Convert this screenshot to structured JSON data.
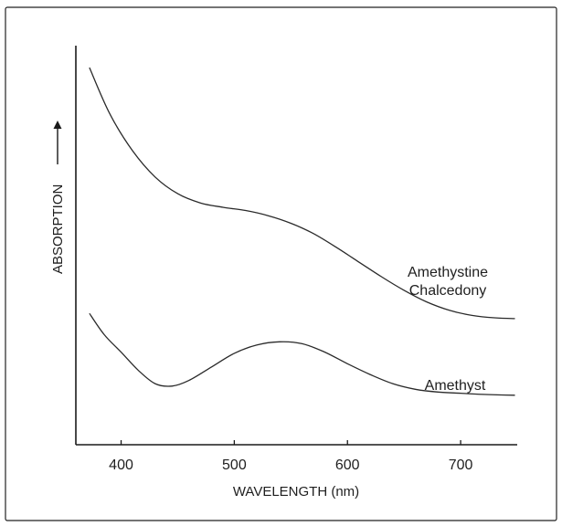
{
  "chart_data": {
    "type": "line",
    "title": "",
    "xlabel": "WAVELENGTH (nm)",
    "ylabel": "ABSORPTION",
    "xlim": [
      360,
      750
    ],
    "ylim": [
      0,
      100
    ],
    "x_ticks": [
      400,
      500,
      600,
      700
    ],
    "y_ticks": [],
    "grid": false,
    "legend": "none",
    "series": [
      {
        "name": "Amethystine Chalcedony",
        "label_lines": [
          "Amethystine",
          "Chalcedony"
        ],
        "x": [
          372,
          390,
          410,
          430,
          450,
          470,
          490,
          510,
          530,
          550,
          570,
          590,
          610,
          630,
          650,
          670,
          690,
          710,
          730,
          748
        ],
        "y": [
          94.5,
          82.9,
          73.7,
          67.1,
          62.9,
          60.6,
          59.5,
          58.7,
          57.4,
          55.5,
          52.9,
          49.5,
          45.8,
          42.1,
          38.7,
          35.8,
          33.7,
          32.4,
          31.8,
          31.6
        ]
      },
      {
        "name": "Amethyst",
        "label_lines": [
          "Amethyst"
        ],
        "x": [
          372,
          385,
          400,
          415,
          430,
          445,
          460,
          480,
          500,
          520,
          540,
          560,
          580,
          600,
          620,
          640,
          660,
          680,
          700,
          720,
          748
        ],
        "y": [
          32.9,
          27.6,
          23.2,
          18.7,
          15.3,
          14.7,
          16.1,
          19.5,
          22.9,
          25.0,
          25.8,
          25.3,
          23.2,
          20.3,
          17.6,
          15.3,
          13.9,
          13.2,
          12.9,
          12.6,
          12.4
        ]
      }
    ]
  }
}
